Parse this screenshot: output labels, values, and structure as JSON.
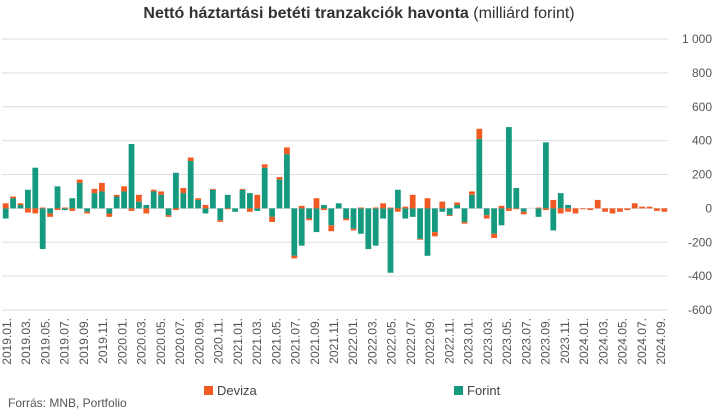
{
  "chart_data": {
    "type": "bar",
    "stacked": true,
    "title_bold": "Nettó háztartási betéti tranzakciók havonta",
    "title_rest": "(milliárd forint)",
    "source": "Forrás: MNB, Portfolio",
    "ylim": [
      -600,
      1000
    ],
    "yticks": [
      1000,
      800,
      600,
      400,
      200,
      0,
      -200,
      -400,
      -600
    ],
    "ytick_labels": [
      "1 000",
      "800",
      "600",
      "400",
      "200",
      "0",
      "-200",
      "-400",
      "-600"
    ],
    "grid": true,
    "legend_placement": "bottom",
    "colors": {
      "deviza": "#f15a22",
      "forint": "#159a80"
    },
    "x_labels": [
      "2019.01.",
      "2019.03.",
      "2019.05.",
      "2019.07.",
      "2019.09.",
      "2019.11.",
      "2020.01.",
      "2020.03.",
      "2020.05.",
      "2020.07.",
      "2020.09.",
      "2020.11.",
      "2021.01.",
      "2021.03.",
      "2021.05.",
      "2021.07.",
      "2021.09.",
      "2021.11.",
      "2022.01.",
      "2022.03.",
      "2022.05.",
      "2022.07.",
      "2022.09.",
      "2022.11.",
      "2023.01.",
      "2023.03.",
      "2023.05.",
      "2023.07.",
      "2023.09.",
      "2023.11.",
      "2024.01.",
      "2024.03.",
      "2024.05.",
      "2024.07.",
      "2024.09."
    ],
    "series": [
      {
        "name": "Deviza",
        "values": [
          30,
          10,
          10,
          -25,
          -30,
          5,
          -20,
          -10,
          5,
          -15,
          20,
          -10,
          25,
          50,
          -20,
          10,
          30,
          -15,
          40,
          -30,
          10,
          20,
          -10,
          -10,
          30,
          20,
          10,
          20,
          5,
          -10,
          -5,
          0,
          5,
          -20,
          80,
          20,
          -30,
          15,
          40,
          -15,
          15,
          -10,
          60,
          -10,
          -35,
          0,
          -10,
          -10,
          5,
          0,
          5,
          30,
          5,
          -20,
          10,
          80,
          -5,
          60,
          -25,
          40,
          -5,
          15,
          -10,
          20,
          60,
          -20,
          -25,
          15,
          -15,
          -5,
          -15,
          0,
          5,
          -10,
          50,
          -30,
          -20,
          -30,
          -5,
          -10,
          50,
          -20,
          -30,
          -20,
          -10,
          30,
          10,
          10,
          -15,
          -20
        ]
      },
      {
        "name": "Forint",
        "values": [
          -60,
          60,
          20,
          110,
          240,
          -240,
          -30,
          130,
          -10,
          60,
          150,
          -20,
          90,
          100,
          -30,
          70,
          100,
          380,
          40,
          20,
          100,
          80,
          -40,
          210,
          90,
          280,
          50,
          -30,
          110,
          -70,
          80,
          -20,
          110,
          90,
          -15,
          240,
          -50,
          170,
          320,
          -280,
          -220,
          -60,
          -140,
          20,
          -100,
          30,
          -60,
          -120,
          -150,
          -240,
          -220,
          -60,
          -380,
          110,
          -60,
          -50,
          -180,
          -280,
          -140,
          -20,
          -40,
          20,
          -80,
          80,
          410,
          -40,
          -150,
          -100,
          480,
          120,
          -20,
          0,
          -50,
          390,
          -130,
          90,
          20,
          0,
          0,
          0,
          0,
          0,
          0,
          0,
          0,
          0,
          0,
          0,
          0,
          0
        ]
      }
    ]
  }
}
